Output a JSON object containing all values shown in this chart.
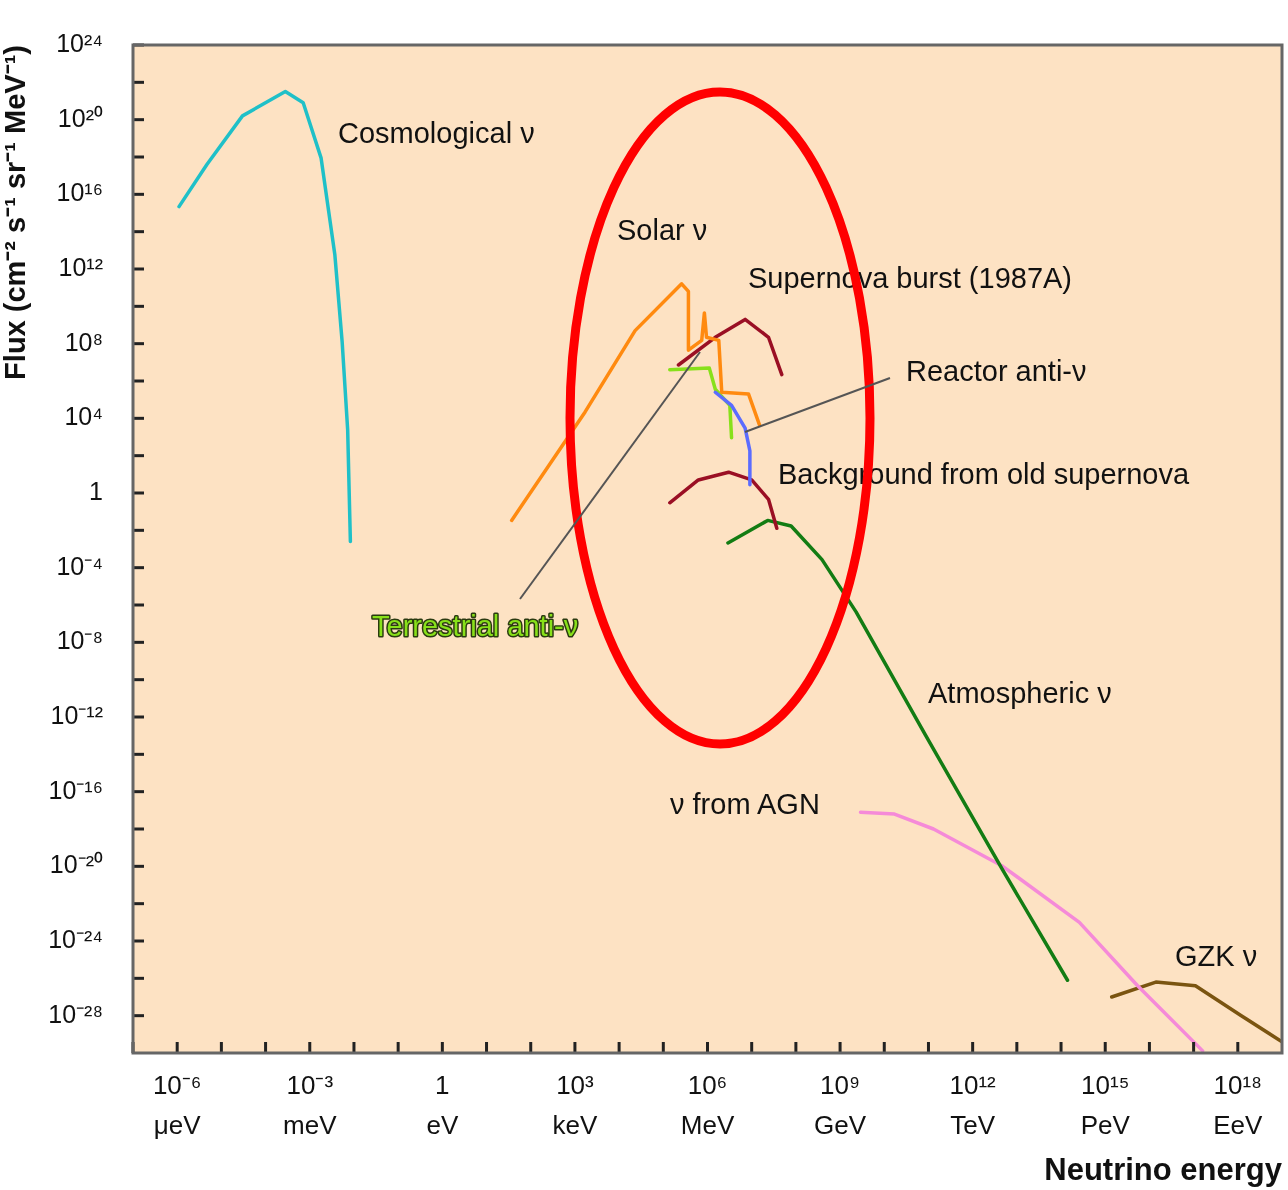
{
  "chart_data": {
    "type": "line",
    "xlabel": "Neutrino energy",
    "ylabel": "Flux (cm⁻² s⁻¹ sr⁻¹ MeV⁻¹)",
    "log": "xy",
    "marker": "none",
    "line_style": "solid",
    "legend": false,
    "grid": false,
    "xlim": [
      1e-07,
      1e+19
    ],
    "ylim": [
      1e-30,
      1e+24
    ],
    "xticks": [
      {
        "value": 1e-07,
        "label": null
      },
      {
        "value": 1e-06,
        "label": "10⁻⁶"
      },
      {
        "value": 1e-05,
        "label": null
      },
      {
        "value": 0.0001,
        "label": null
      },
      {
        "value": 0.001,
        "label": "10⁻³"
      },
      {
        "value": 0.01,
        "label": null
      },
      {
        "value": 0.1,
        "label": null
      },
      1,
      {
        "value": 10.0,
        "label": null
      },
      {
        "value": 100.0,
        "label": null
      },
      {
        "value": 1000.0,
        "label": "10³"
      },
      {
        "value": 10000.0,
        "label": null
      },
      {
        "value": 100000.0,
        "label": null
      },
      {
        "value": 1000000.0,
        "label": "10⁶"
      },
      {
        "value": 10000000.0,
        "label": null
      },
      {
        "value": 100000000.0,
        "label": null
      },
      {
        "value": 1000000000.0,
        "label": "10⁹"
      },
      {
        "value": 10000000000.0,
        "label": null
      },
      {
        "value": 100000000000.0,
        "label": null
      },
      {
        "value": 1000000000000.0,
        "label": "10¹²"
      },
      {
        "value": 10000000000000.0,
        "label": null
      },
      {
        "value": 100000000000000.0,
        "label": null
      },
      {
        "value": 1000000000000000.0,
        "label": "10¹⁵"
      },
      {
        "value": 1e+16,
        "label": null
      },
      {
        "value": 1e+17,
        "label": null
      },
      {
        "value": 1e+18,
        "label": "10¹⁸"
      }
    ],
    "yticks": [
      {
        "value": 1e+24,
        "label": "10²⁴"
      },
      {
        "value": 1e+22,
        "label": null
      },
      {
        "value": 1e+20,
        "label": "10²⁰"
      },
      {
        "value": 1e+18,
        "label": null
      },
      {
        "value": 1e+16,
        "label": "10¹⁶"
      },
      {
        "value": 100000000000000.0,
        "label": null
      },
      {
        "value": 1000000000000.0,
        "label": "10¹²"
      },
      {
        "value": 10000000000.0,
        "label": null
      },
      {
        "value": 100000000.0,
        "label": "10⁸"
      },
      {
        "value": 1000000.0,
        "label": null
      },
      {
        "value": 10000.0,
        "label": "10⁴"
      },
      {
        "value": 100.0,
        "label": null
      },
      1,
      {
        "value": 0.01,
        "label": null
      },
      {
        "value": 0.0001,
        "label": "10⁻⁴"
      },
      {
        "value": 1e-06,
        "label": null
      },
      {
        "value": 1e-08,
        "label": "10⁻⁸"
      },
      {
        "value": 1e-10,
        "label": null
      },
      {
        "value": 1e-12,
        "label": "10⁻¹²"
      },
      {
        "value": 1e-14,
        "label": null
      },
      {
        "value": 1e-16,
        "label": "10⁻¹⁶"
      },
      {
        "value": 1e-18,
        "label": null
      },
      {
        "value": 1e-20,
        "label": "10⁻²⁰"
      },
      {
        "value": 1e-22,
        "label": null
      },
      {
        "value": 1e-24,
        "label": "10⁻²⁴"
      },
      {
        "value": 1e-26,
        "label": null
      },
      {
        "value": 1e-28,
        "label": "10⁻²⁸"
      }
    ],
    "series": [
      {
        "name": "Cosmological ν",
        "color": "#1fc0c8",
        "x": [
          1.1e-06,
          4.7e-06,
          3e-05,
          0.00028,
          0.00071,
          0.0018,
          0.0037,
          0.0054,
          0.0072,
          0.0083
        ],
        "values": [
          2200000000000000.0,
          4e+17,
          1.6e+20,
          3.2e+21,
          8e+20,
          9e+17,
          5600000000000.0,
          130000000.0,
          2500.0,
          0.0025
        ]
      },
      {
        "name": "Solar ν",
        "color": "#ff8a10",
        "x": [
          37,
          1700.0,
          23000.0,
          260000.0,
          370000.0,
          370000.0,
          740000.0,
          850000.0,
          950000.0,
          1800000.0,
          2100000.0,
          8500000.0,
          15000000.0
        ],
        "values": [
          0.034,
          22000.0,
          500000000.0,
          160000000000.0,
          63000000000.0,
          45000000.0,
          150000000.0,
          4400000000.0,
          220000000.0,
          150000000.0,
          250000.0,
          200000.0,
          4500.0
        ]
      },
      {
        "name": "Supernova burst (1987A)",
        "color": "#9a0f24",
        "x": [
          220000.0,
          1500000.0,
          7100000.0,
          24000000.0,
          48000000.0
        ],
        "values": [
          7200000.0,
          220000000.0,
          2000000000.0,
          220000000.0,
          2200000.0
        ]
      },
      {
        "name": "Reactor anti-ν",
        "color": "#5b6cff",
        "x": [
          1500000.0,
          3500000.0,
          7100000.0,
          9100000.0,
          9100000.0
        ],
        "values": [
          250000.0,
          49000.0,
          3000.0,
          180,
          2.8
        ]
      },
      {
        "name": "Background from old supernova",
        "color": "#9a0f24",
        "x": [
          140000.0,
          620000.0,
          3000000.0,
          10000000.0,
          24000000.0,
          37000000.0
        ],
        "values": [
          0.3,
          5,
          13,
          5,
          0.46,
          0.013
        ]
      },
      {
        "name": "Terrestrial anti-ν",
        "color": "#88e01a",
        "x": [
          140000.0,
          1100000.0,
          1500000.0,
          3200000.0,
          3500000.0
        ],
        "values": [
          4000000.0,
          4900000.0,
          360000.0,
          49000.0,
          910
        ]
      },
      {
        "name": "Atmospheric ν",
        "color": "#137c13",
        "x": [
          2900000.0,
          23000000.0,
          78000000.0,
          390000000.0,
          2300000000.0,
          87000000000.0,
          4800000000000.0,
          140000000000000.0
        ],
        "values": [
          0.0021,
          0.034,
          0.017,
          0.00027,
          4.3e-07,
          1e-13,
          6.3e-21,
          7.9e-27
        ]
      },
      {
        "name": "ν from AGN",
        "color": "#f58ad8",
        "x": [
          2900000000.0,
          17000000000.0,
          130000000000.0,
          4800000000000.0,
          260000000000000.0,
          5400000000000000.0,
          1.6e+17
        ],
        "values": [
          7.9e-18,
          6.3e-18,
          1e-18,
          1e-20,
          1e-23,
          4e-27,
          1.3e-30
        ]
      },
      {
        "name": "GZK ν",
        "color": "#7a5410",
        "x": [
          1400000000000000.0,
          1.4e+16,
          1.1e+17,
          1.2e+18,
          1e+19
        ],
        "values": [
          1e-27,
          6.3e-27,
          4e-27,
          1e-28,
          4e-30
        ]
      }
    ],
    "annotations": [
      "μeV",
      "meV",
      "eV",
      "keV",
      "MeV",
      "GeV",
      "TeV",
      "PeV",
      "EeV"
    ]
  }
}
